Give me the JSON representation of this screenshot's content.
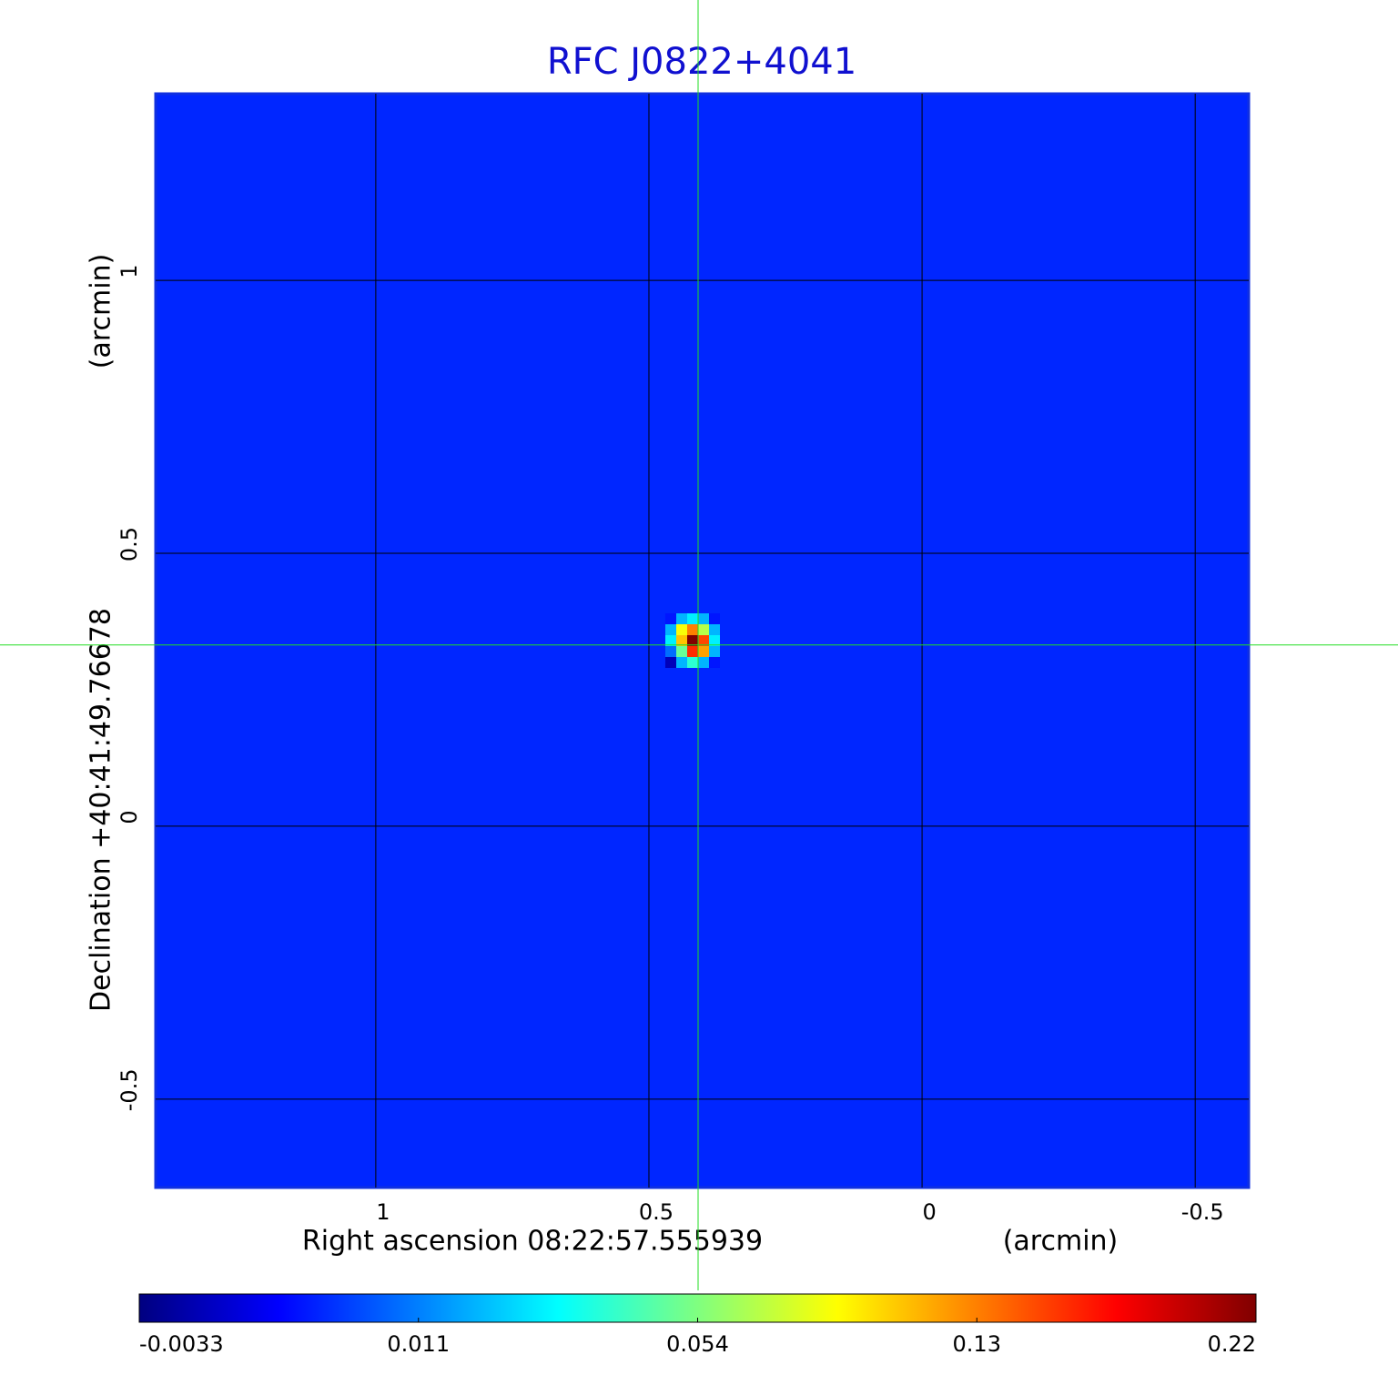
{
  "chart_data": {
    "type": "image",
    "title": "RFC J0822+4041",
    "x_label": "Right ascension  08:22:57.555939",
    "x_unit": "(arcmin)",
    "y_label": "Declination  +40:41:49.76678",
    "y_unit": "(arcmin)",
    "xlim": [
      1.403,
      -0.598
    ],
    "ylim": [
      -0.662,
      1.342
    ],
    "xticks": [
      1.0,
      0.5,
      0.0,
      -0.5
    ],
    "yticks": [
      1.0,
      0.5,
      0.0,
      -0.5
    ],
    "grid": true,
    "crosshair": {
      "x": 0.41,
      "y": 0.332,
      "color": "#22dd22"
    },
    "background": 0.006,
    "image": {
      "x": [
        0.46,
        0.44,
        0.42,
        0.4,
        0.38
      ],
      "y": [
        0.38,
        0.36,
        0.34,
        0.32,
        0.3
      ],
      "values": [
        [
          0.005,
          0.02,
          0.03,
          0.02,
          0.005
        ],
        [
          0.02,
          0.09,
          0.13,
          0.07,
          0.02
        ],
        [
          0.03,
          0.11,
          0.22,
          0.15,
          0.03
        ],
        [
          0.01,
          0.05,
          0.16,
          0.12,
          0.02
        ],
        [
          0.0,
          0.02,
          0.04,
          0.02,
          0.005
        ]
      ]
    },
    "colorbar": {
      "ticks": [
        -0.0033,
        0.011,
        0.054,
        0.13,
        0.22
      ],
      "colormap": "jet"
    }
  }
}
